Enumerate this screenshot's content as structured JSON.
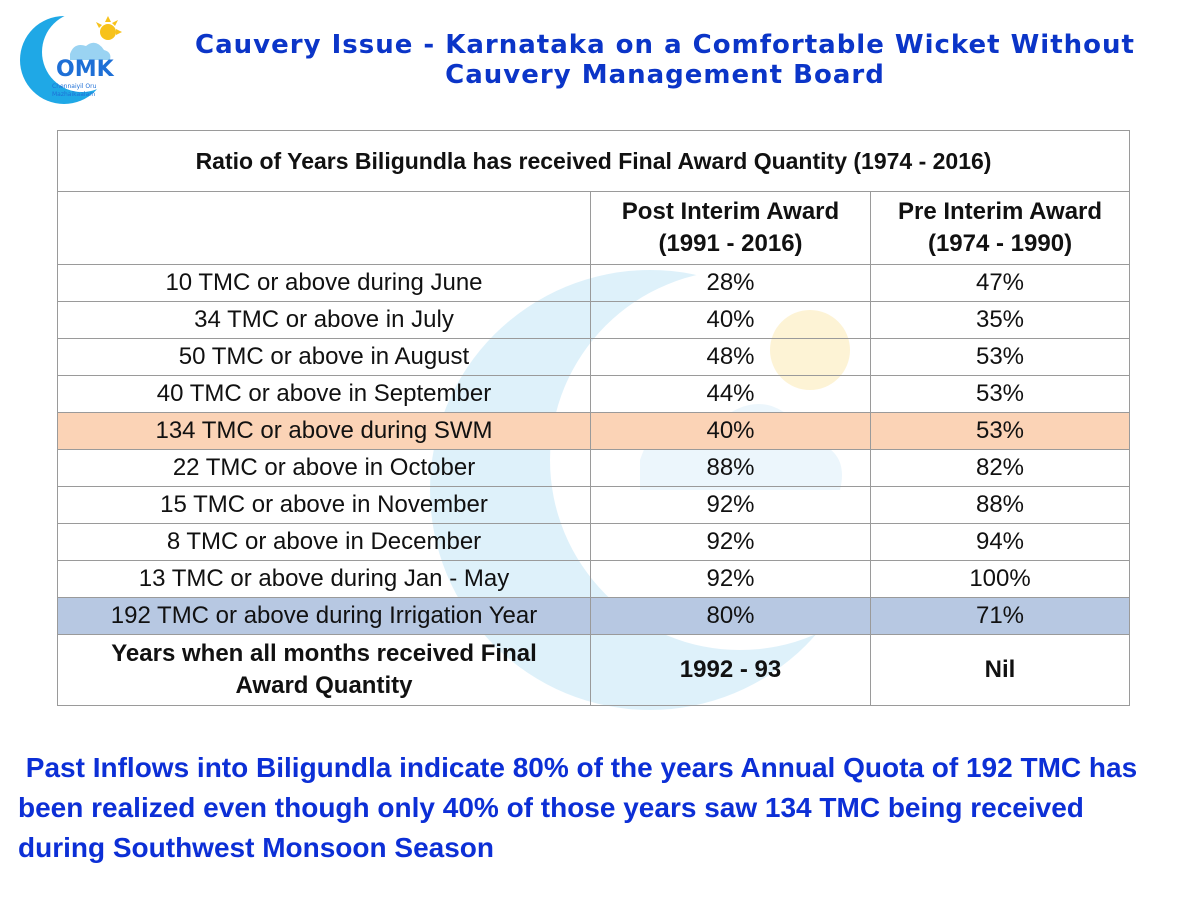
{
  "header": {
    "title_line1": "Cauvery Issue - Karnataka on a Comfortable Wicket Without",
    "title_line2": "Cauvery Management Board",
    "logo_icon": "omk-moon-cloud-sun-logo",
    "logo_text": "OMK",
    "logo_subtext": "Chennaiyil Oru Mazhaikaalam"
  },
  "table": {
    "caption": "Ratio of Years Biligundla has received Final Award Quantity (1974 - 2016)",
    "col2_header_line1": "Post Interim Award",
    "col2_header_line2": "(1991 - 2016)",
    "col3_header_line1": "Pre Interim Award",
    "col3_header_line2": "(1974 - 1990)",
    "rows": [
      {
        "label": "10 TMC or above during June",
        "post": "28%",
        "pre": "47%"
      },
      {
        "label": "34 TMC or above in July",
        "post": "40%",
        "pre": "35%"
      },
      {
        "label": "50 TMC or above in August",
        "post": "48%",
        "pre": "53%"
      },
      {
        "label": "40 TMC or above in September",
        "post": "44%",
        "pre": "53%"
      },
      {
        "label": "134 TMC or above during SWM",
        "post": "40%",
        "pre": "53%"
      },
      {
        "label": "22 TMC or above in October",
        "post": "88%",
        "pre": "82%"
      },
      {
        "label": "15 TMC or above in November",
        "post": "92%",
        "pre": "88%"
      },
      {
        "label": "8 TMC or above in December",
        "post": "92%",
        "pre": "94%"
      },
      {
        "label": "13 TMC or above during Jan - May",
        "post": "92%",
        "pre": "100%"
      },
      {
        "label": "192 TMC or above during Irrigation Year",
        "post": "80%",
        "pre": "71%"
      }
    ],
    "last_label_line1": "Years when all months received Final",
    "last_label_line2": "Award Quantity",
    "last_post": "1992 - 93",
    "last_pre": "Nil"
  },
  "note_line1": " Past Inflows into Biligundla indicate 80% of the years Annual Quota of 192 TMC has",
  "note_line2": "been realized even though only 40% of those years saw 134 TMC being received",
  "note_line3": "during Southwest Monsoon Season",
  "colors": {
    "title": "#0b35c8",
    "note": "#0c2fd6",
    "swm_row": "#fbd3b6",
    "irrigation_row": "#b7c8e2"
  }
}
